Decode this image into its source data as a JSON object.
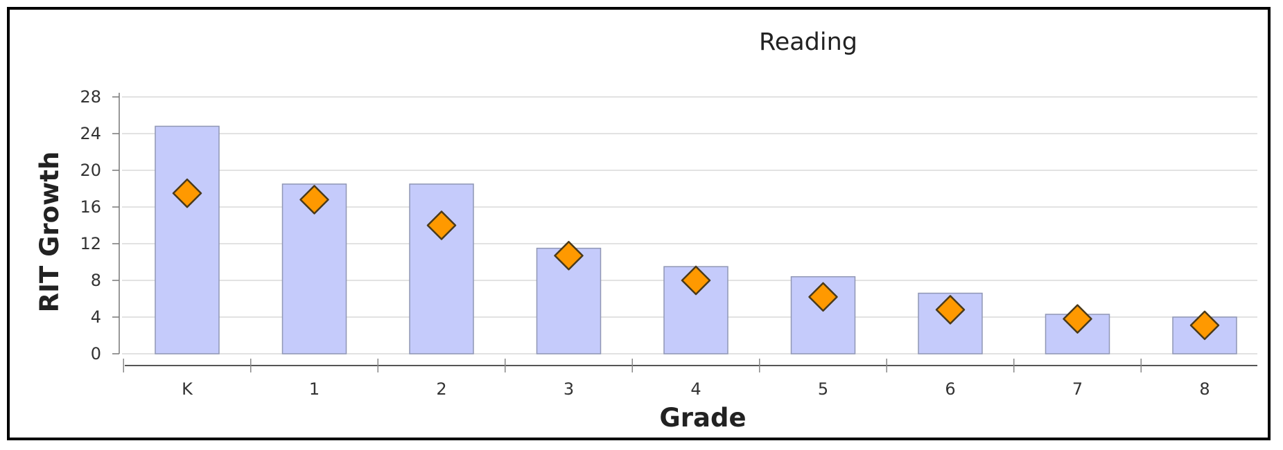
{
  "chart_data": {
    "type": "bar",
    "title": "Reading",
    "xlabel": "Grade",
    "ylabel": "RIT Growth",
    "categories": [
      "K",
      "1",
      "2",
      "3",
      "4",
      "5",
      "6",
      "7",
      "8"
    ],
    "series": [
      {
        "type": "bar",
        "values": [
          24.8,
          18.5,
          18.5,
          11.5,
          9.5,
          8.4,
          6.6,
          4.3,
          4.0
        ],
        "color": "#c5cbfb"
      },
      {
        "type": "marker",
        "values": [
          17.5,
          16.8,
          14.0,
          10.7,
          8.0,
          6.2,
          4.8,
          3.8,
          3.1
        ],
        "color": "#ff9900"
      }
    ],
    "ylim": [
      0,
      28
    ],
    "yticks": [
      0,
      4,
      8,
      12,
      16,
      20,
      24,
      28
    ],
    "grid": true,
    "legend": "none"
  }
}
